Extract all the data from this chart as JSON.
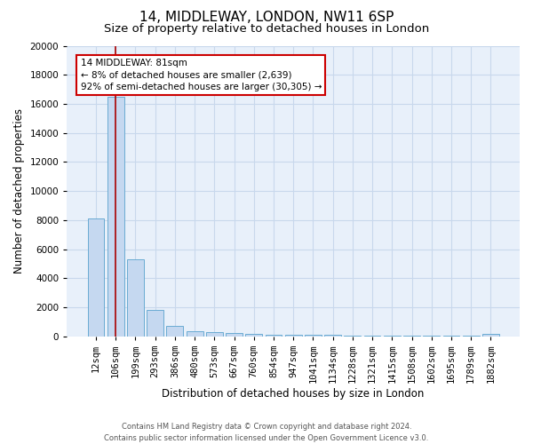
{
  "title1": "14, MIDDLEWAY, LONDON, NW11 6SP",
  "title2": "Size of property relative to detached houses in London",
  "xlabel": "Distribution of detached houses by size in London",
  "ylabel": "Number of detached properties",
  "bar_color": "#c5d8f0",
  "bar_edge_color": "#6aabd2",
  "grid_color": "#c8d8ec",
  "bg_color": "#e8f0fa",
  "annotation_text": "14 MIDDLEWAY: 81sqm\n← 8% of detached houses are smaller (2,639)\n92% of semi-detached houses are larger (30,305) →",
  "annotation_box_color": "#ffffff",
  "annotation_border_color": "#cc0000",
  "property_line_color": "#aa0000",
  "property_line_x": 1,
  "categories": [
    "12sqm",
    "106sqm",
    "199sqm",
    "293sqm",
    "386sqm",
    "480sqm",
    "573sqm",
    "667sqm",
    "760sqm",
    "854sqm",
    "947sqm",
    "1041sqm",
    "1134sqm",
    "1228sqm",
    "1321sqm",
    "1415sqm",
    "1508sqm",
    "1602sqm",
    "1695sqm",
    "1789sqm",
    "1882sqm"
  ],
  "values": [
    8100,
    16500,
    5300,
    1800,
    700,
    350,
    300,
    200,
    150,
    120,
    100,
    90,
    80,
    70,
    65,
    60,
    55,
    50,
    48,
    45,
    150
  ],
  "ylim": [
    0,
    20000
  ],
  "yticks": [
    0,
    2000,
    4000,
    6000,
    8000,
    10000,
    12000,
    14000,
    16000,
    18000,
    20000
  ],
  "footer_text": "Contains HM Land Registry data © Crown copyright and database right 2024.\nContains public sector information licensed under the Open Government Licence v3.0.",
  "title1_fontsize": 11,
  "title2_fontsize": 9.5,
  "tick_fontsize": 7.5,
  "ylabel_fontsize": 8.5,
  "xlabel_fontsize": 8.5,
  "annotation_fontsize": 7.5,
  "footer_fontsize": 6
}
